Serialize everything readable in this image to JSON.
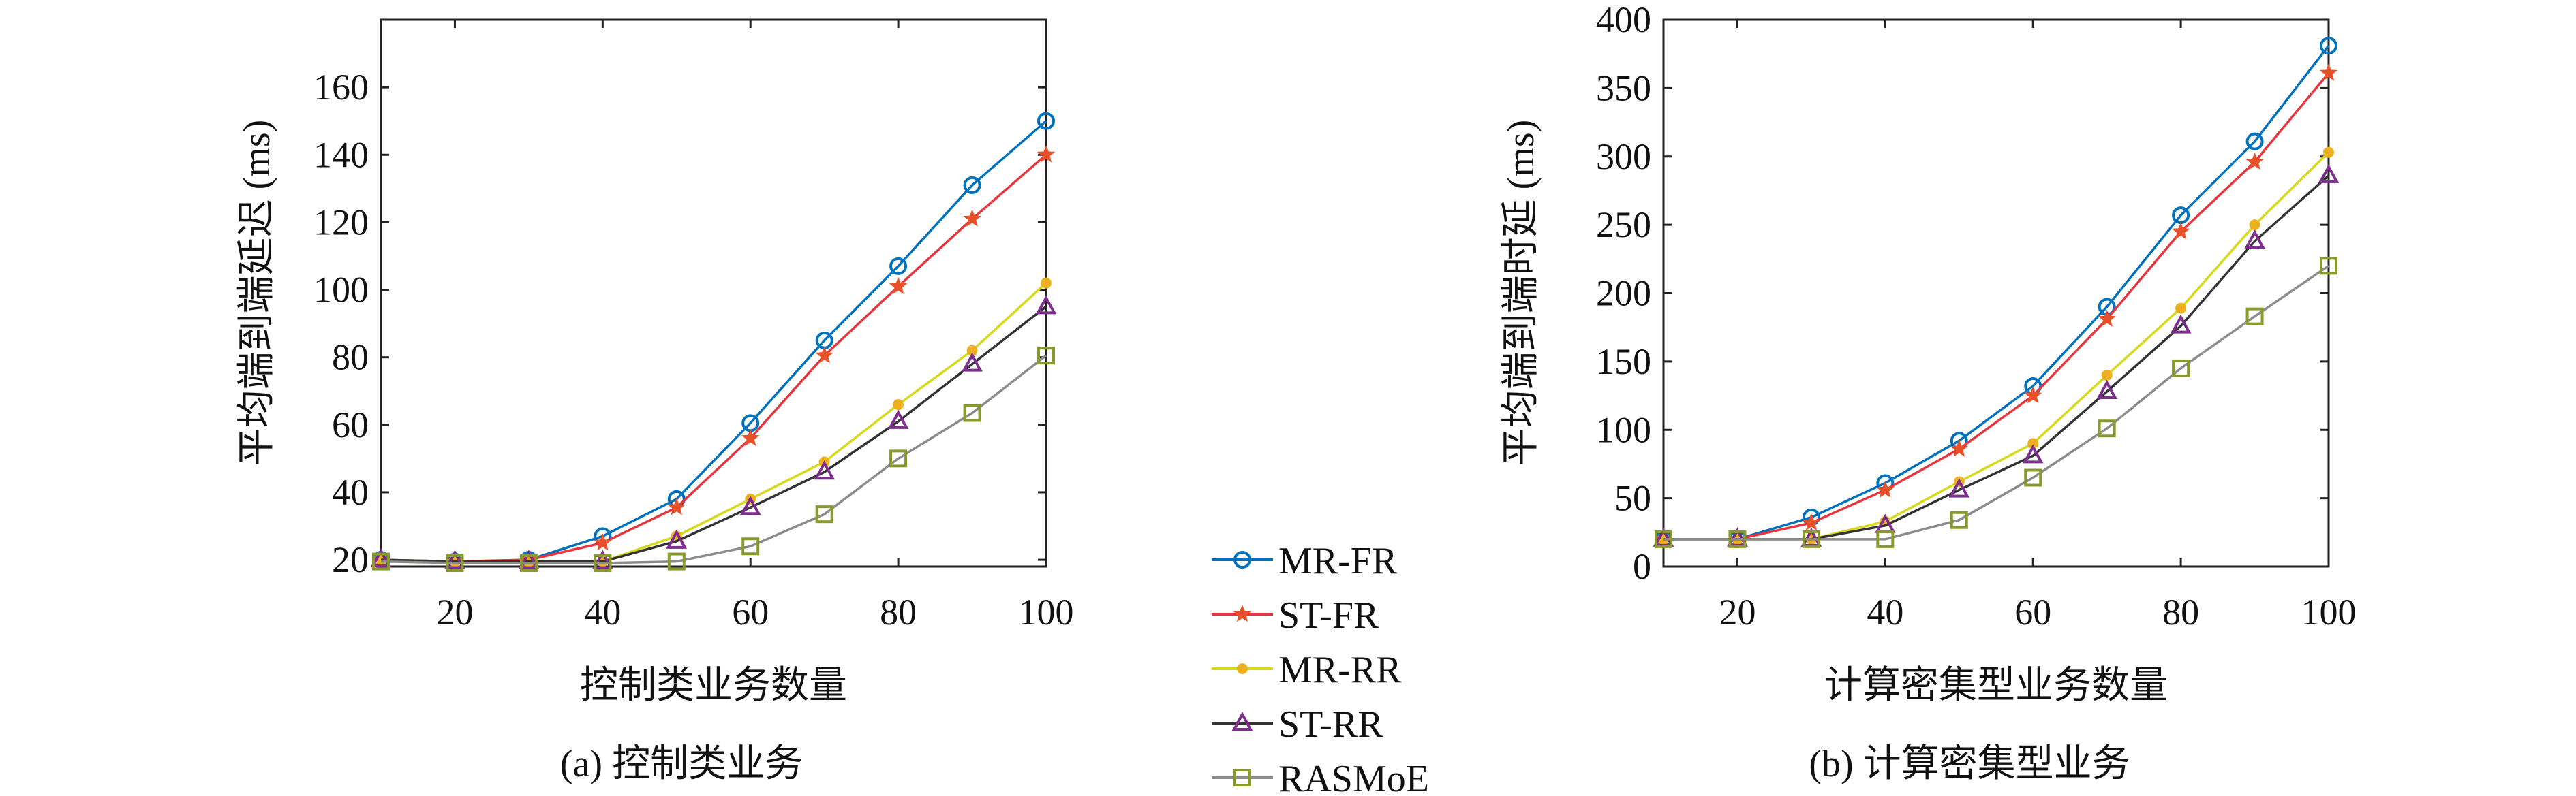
{
  "legend": {
    "placement": "between-charts",
    "entries": [
      {
        "name": "MR-FR",
        "line_color": "#0072BD",
        "marker_color": "#0072BD",
        "marker": "circle"
      },
      {
        "name": "ST-FR",
        "line_color": "#E8343C",
        "marker_color": "#E8502A",
        "marker": "star"
      },
      {
        "name": "MR-RR",
        "line_color": "#D6DA1A",
        "marker_color": "#EDB120",
        "marker": "dot"
      },
      {
        "name": "ST-RR",
        "line_color": "#333333",
        "marker_color": "#7E2F8E",
        "marker": "triangle"
      },
      {
        "name": "RASMoE",
        "line_color": "#8C8C8C",
        "marker_color": "#8A9A2A",
        "marker": "square"
      }
    ]
  },
  "chart_data": [
    {
      "type": "line",
      "caption": "(a) 控制类业务",
      "xlabel": "控制类业务数量",
      "ylabel": "平均端到端延迟 (ms)",
      "x": [
        10,
        20,
        30,
        40,
        50,
        60,
        70,
        80,
        90,
        100
      ],
      "xlim": [
        10,
        100
      ],
      "ylim": [
        18,
        180
      ],
      "xticks": [
        20,
        40,
        60,
        80,
        100
      ],
      "yticks": [
        20,
        40,
        60,
        80,
        100,
        120,
        140,
        160
      ],
      "grid": false,
      "series": [
        {
          "name": "MR-FR",
          "values": [
            20,
            19.5,
            20,
            27,
            38,
            60.5,
            85,
            107,
            131,
            150
          ]
        },
        {
          "name": "ST-FR",
          "values": [
            20,
            19.5,
            20,
            25,
            35.5,
            56,
            80.5,
            101,
            121,
            140
          ]
        },
        {
          "name": "MR-RR",
          "values": [
            20,
            19.5,
            19.5,
            19.5,
            27,
            38,
            49,
            66,
            82,
            102
          ]
        },
        {
          "name": "ST-RR",
          "values": [
            20,
            19.5,
            19.5,
            19.5,
            25.5,
            35.5,
            46,
            61,
            78,
            95
          ]
        },
        {
          "name": "RASMoE",
          "values": [
            19.5,
            19,
            19,
            19,
            19.5,
            24,
            33.5,
            50,
            63.5,
            80.5
          ]
        }
      ]
    },
    {
      "type": "line",
      "caption": "(b) 计算密集型业务",
      "xlabel": "计算密集型业务数量",
      "ylabel": "平均端到端时延 (ms)",
      "x": [
        10,
        20,
        30,
        40,
        50,
        60,
        70,
        80,
        90,
        100
      ],
      "xlim": [
        10,
        100
      ],
      "ylim": [
        0,
        400
      ],
      "xticks": [
        20,
        40,
        60,
        80,
        100
      ],
      "yticks": [
        0,
        50,
        100,
        150,
        200,
        250,
        300,
        350,
        400
      ],
      "grid": false,
      "series": [
        {
          "name": "MR-FR",
          "values": [
            20,
            20,
            36,
            61,
            92,
            132,
            190,
            257,
            311,
            381
          ]
        },
        {
          "name": "ST-FR",
          "values": [
            20,
            20,
            32,
            56,
            86,
            125,
            181,
            245,
            296,
            361
          ]
        },
        {
          "name": "MR-RR",
          "values": [
            20,
            20,
            20,
            33,
            62,
            90,
            140,
            189,
            250,
            303
          ]
        },
        {
          "name": "ST-RR",
          "values": [
            20,
            20,
            20,
            30,
            56,
            81,
            128,
            176,
            238,
            286
          ]
        },
        {
          "name": "RASMoE",
          "values": [
            20,
            20,
            20,
            20,
            34,
            65,
            101,
            145,
            183,
            220
          ]
        }
      ]
    }
  ]
}
